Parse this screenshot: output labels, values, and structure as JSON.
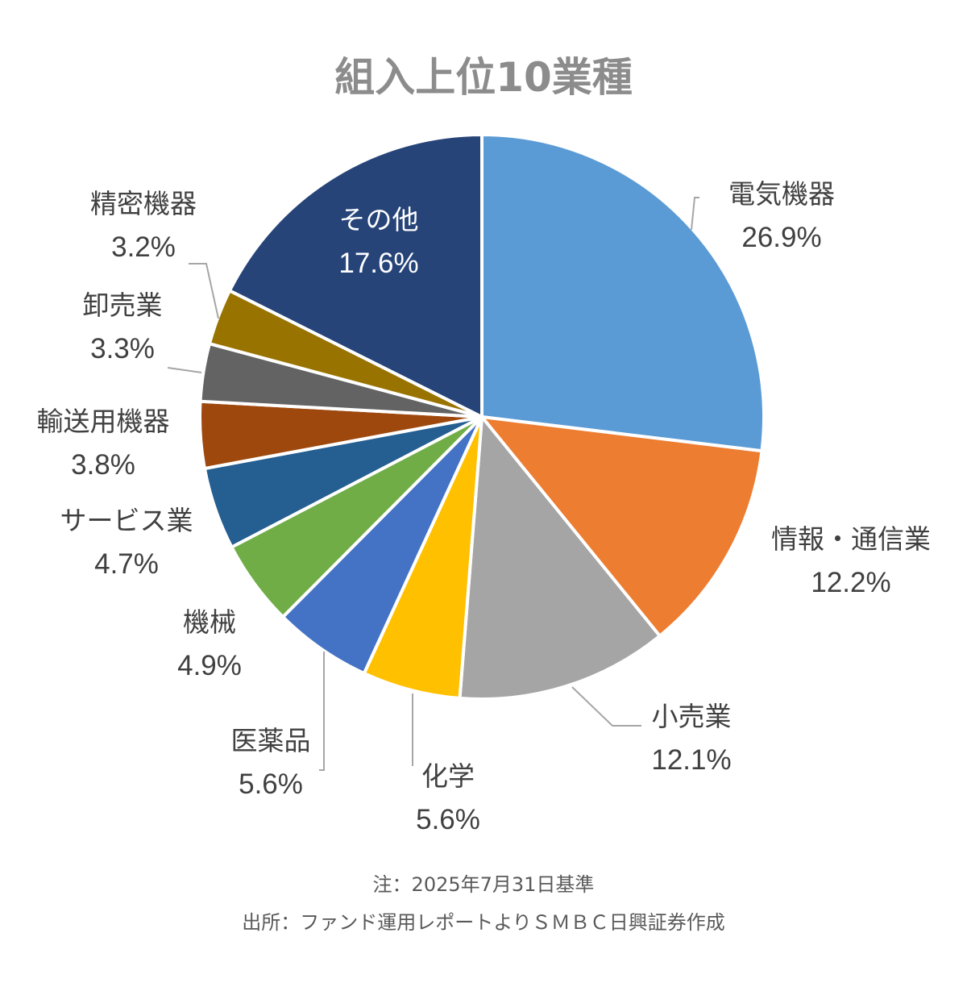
{
  "chart_data": {
    "type": "pie",
    "title": "組入上位10業種",
    "categories": [
      "電気機器",
      "情報・通信業",
      "小売業",
      "化学",
      "医薬品",
      "機械",
      "サービス業",
      "輸送用機器",
      "卸売業",
      "精密機器",
      "その他"
    ],
    "values": [
      26.9,
      12.2,
      12.1,
      5.6,
      5.6,
      4.9,
      4.7,
      3.8,
      3.3,
      3.2,
      17.6
    ],
    "value_labels": [
      "26.9%",
      "12.2%",
      "12.1%",
      "5.6%",
      "5.6%",
      "4.9%",
      "4.7%",
      "3.8%",
      "3.3%",
      "3.2%",
      "17.6%"
    ],
    "colors": [
      "#5b9bd5",
      "#ed7d31",
      "#a5a5a5",
      "#ffc000",
      "#4472c4",
      "#70ad47",
      "#255e91",
      "#9e480e",
      "#636363",
      "#997300",
      "#264478"
    ],
    "start": "12 o'clock",
    "direction": "clockwise",
    "legend": "none (data labels beside slices)"
  },
  "footnotes": {
    "note": "注：2025年7月31日基準",
    "source": "出所：ファンド運用レポートよりＳＭＢＣ日興証券作成"
  }
}
